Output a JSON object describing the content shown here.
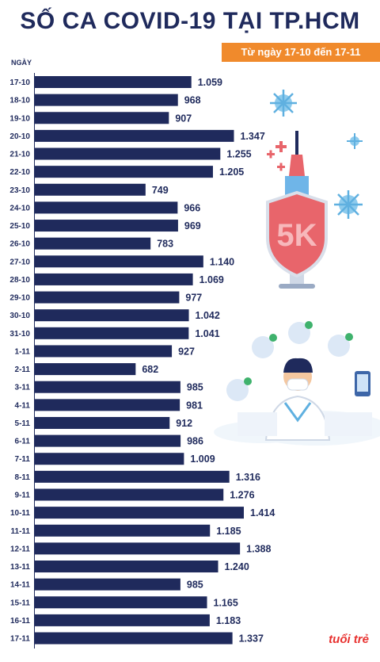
{
  "title": "SỐ CA COVID-19 TẠI TP.HCM",
  "subtitle": "Từ ngày 17-10 đến 17-11",
  "logo_text": "tuổi trẻ",
  "colors": {
    "bar": "#1f2a5c",
    "accent": "#f08a2c",
    "vaccine": "#e8656b",
    "virus": "#5fb0e0"
  },
  "illustration_text": "5K",
  "icons": [
    "virus-icon",
    "syringe-icon",
    "shield-icon",
    "doctor-icon",
    "phone-icon"
  ],
  "chart_data": {
    "type": "bar",
    "orientation": "horizontal",
    "ylabel": "NGÀY",
    "categories": [
      "17-10",
      "18-10",
      "19-10",
      "20-10",
      "21-10",
      "22-10",
      "23-10",
      "24-10",
      "25-10",
      "26-10",
      "27-10",
      "28-10",
      "29-10",
      "30-10",
      "31-10",
      "1-11",
      "2-11",
      "3-11",
      "4-11",
      "5-11",
      "6-11",
      "7-11",
      "8-11",
      "9-11",
      "10-11",
      "11-11",
      "12-11",
      "13-11",
      "14-11",
      "15-11",
      "16-11",
      "17-11"
    ],
    "values": [
      1059,
      968,
      907,
      1347,
      1255,
      1205,
      749,
      966,
      969,
      783,
      1140,
      1069,
      977,
      1042,
      1041,
      927,
      682,
      985,
      981,
      912,
      986,
      1009,
      1316,
      1276,
      1414,
      1185,
      1388,
      1240,
      985,
      1165,
      1183,
      1337
    ],
    "value_labels": [
      "1.059",
      "968",
      "907",
      "1.347",
      "1.255",
      "1.205",
      "749",
      "966",
      "969",
      "783",
      "1.140",
      "1.069",
      "977",
      "1.042",
      "1.041",
      "927",
      "682",
      "985",
      "981",
      "912",
      "986",
      "1.009",
      "1.316",
      "1.276",
      "1.414",
      "1.185",
      "1.388",
      "1.240",
      "985",
      "1.165",
      "1.183",
      "1.337"
    ],
    "xlim": [
      0,
      1414
    ]
  }
}
